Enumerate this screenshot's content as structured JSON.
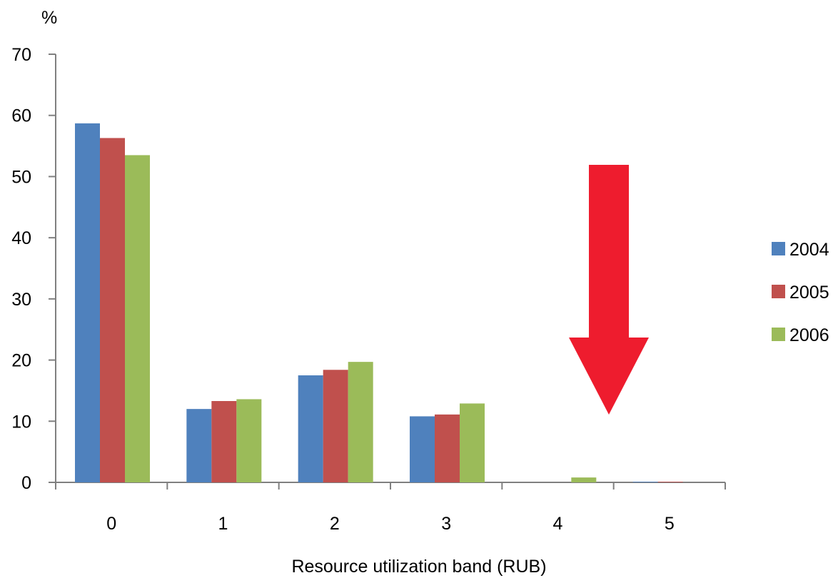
{
  "chart_data": {
    "type": "bar",
    "categories": [
      "0",
      "1",
      "2",
      "3",
      "4",
      "5"
    ],
    "series": [
      {
        "name": "2004",
        "color": "#4f81bd",
        "values": [
          58.7,
          12.0,
          17.5,
          10.8,
          0.0,
          0.1
        ]
      },
      {
        "name": "2005",
        "color": "#c0504d",
        "values": [
          56.3,
          13.3,
          18.4,
          11.1,
          0.0,
          0.1
        ]
      },
      {
        "name": "2006",
        "color": "#9bbb59",
        "values": [
          53.5,
          13.6,
          19.7,
          12.9,
          0.8,
          0.0
        ]
      }
    ],
    "title": "",
    "xlabel": "Resource utilization band (RUB)",
    "ylabel": "%",
    "ylim": [
      0,
      70
    ],
    "yticks": [
      "0",
      "10",
      "20",
      "30",
      "40",
      "50",
      "60",
      "70"
    ],
    "grid": false,
    "legend_position": "right",
    "annotation": {
      "type": "arrow",
      "direction": "down",
      "target_category": "4",
      "color": "#ee1c2e"
    }
  }
}
